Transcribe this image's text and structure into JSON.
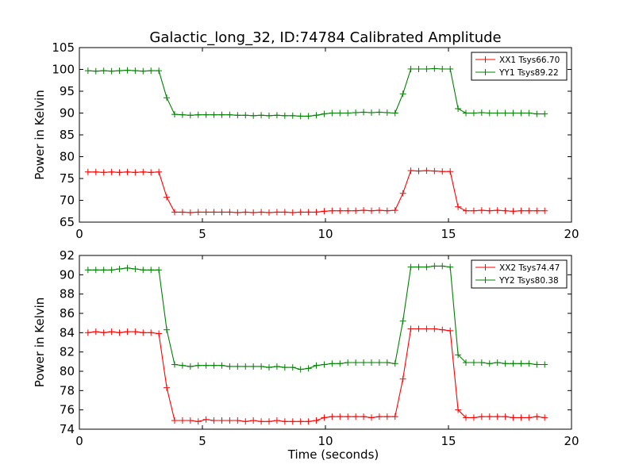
{
  "title": "Galactic_long_32, ID:74784 Calibrated Amplitude",
  "chart_data": [
    {
      "type": "line",
      "xlabel": "",
      "ylabel": "Power in Kelvin",
      "xlim": [
        0,
        20
      ],
      "ylim": [
        65,
        105
      ],
      "xticks": [
        "0",
        "5",
        "10",
        "15",
        "20"
      ],
      "yticks": [
        "65",
        "70",
        "75",
        "80",
        "85",
        "90",
        "95",
        "100",
        "105"
      ],
      "legend_position": "top-right",
      "grid": false,
      "x": [
        0.35,
        0.67,
        0.99,
        1.31,
        1.63,
        1.95,
        2.27,
        2.59,
        2.91,
        3.23,
        3.55,
        3.87,
        4.19,
        4.51,
        4.83,
        5.15,
        5.47,
        5.79,
        6.11,
        6.43,
        6.75,
        7.07,
        7.39,
        7.71,
        8.03,
        8.35,
        8.67,
        8.99,
        9.31,
        9.63,
        9.95,
        10.27,
        10.59,
        10.91,
        11.23,
        11.55,
        11.87,
        12.19,
        12.51,
        12.83,
        13.15,
        13.47,
        13.79,
        14.11,
        14.43,
        14.75,
        15.07,
        15.39,
        15.71,
        16.03,
        16.35,
        16.67,
        16.99,
        17.31,
        17.63,
        17.95,
        18.27,
        18.59,
        18.91
      ],
      "series": [
        {
          "name": "XX1 Tsys66.70",
          "color": "#ff0000",
          "values": [
            76.5,
            76.5,
            76.4,
            76.5,
            76.4,
            76.5,
            76.4,
            76.5,
            76.4,
            76.5,
            70.7,
            67.3,
            67.3,
            67.2,
            67.3,
            67.3,
            67.3,
            67.3,
            67.3,
            67.2,
            67.3,
            67.2,
            67.3,
            67.2,
            67.3,
            67.3,
            67.2,
            67.3,
            67.3,
            67.3,
            67.5,
            67.6,
            67.6,
            67.6,
            67.6,
            67.7,
            67.6,
            67.7,
            67.6,
            67.7,
            71.6,
            76.8,
            76.7,
            76.8,
            76.7,
            76.6,
            76.6,
            68.5,
            67.6,
            67.6,
            67.7,
            67.6,
            67.7,
            67.6,
            67.5,
            67.6,
            67.6,
            67.6,
            67.6
          ]
        },
        {
          "name": "YY1 Tsys89.22",
          "color": "#008000",
          "values": [
            99.7,
            99.6,
            99.7,
            99.6,
            99.7,
            99.8,
            99.7,
            99.6,
            99.7,
            99.7,
            93.5,
            89.7,
            89.6,
            89.5,
            89.6,
            89.6,
            89.6,
            89.6,
            89.6,
            89.5,
            89.5,
            89.4,
            89.5,
            89.4,
            89.5,
            89.4,
            89.4,
            89.3,
            89.3,
            89.5,
            89.8,
            90.0,
            90.0,
            90.0,
            90.1,
            90.2,
            90.1,
            90.2,
            90.1,
            90.0,
            94.4,
            100.1,
            100.1,
            100.1,
            100.2,
            100.1,
            100.1,
            91.0,
            90.0,
            90.0,
            90.1,
            90.0,
            90.0,
            90.0,
            90.0,
            90.0,
            90.0,
            89.8,
            89.8
          ]
        }
      ]
    },
    {
      "type": "line",
      "xlabel": "Time (seconds)",
      "ylabel": "Power in Kelvin",
      "xlim": [
        0,
        20
      ],
      "ylim": [
        74,
        92
      ],
      "xticks": [
        "0",
        "5",
        "10",
        "15",
        "20"
      ],
      "yticks": [
        "74",
        "76",
        "78",
        "80",
        "82",
        "84",
        "86",
        "88",
        "90",
        "92"
      ],
      "legend_position": "top-right",
      "grid": false,
      "x": [
        0.35,
        0.67,
        0.99,
        1.31,
        1.63,
        1.95,
        2.27,
        2.59,
        2.91,
        3.23,
        3.55,
        3.87,
        4.19,
        4.51,
        4.83,
        5.15,
        5.47,
        5.79,
        6.11,
        6.43,
        6.75,
        7.07,
        7.39,
        7.71,
        8.03,
        8.35,
        8.67,
        8.99,
        9.31,
        9.63,
        9.95,
        10.27,
        10.59,
        10.91,
        11.23,
        11.55,
        11.87,
        12.19,
        12.51,
        12.83,
        13.15,
        13.47,
        13.79,
        14.11,
        14.43,
        14.75,
        15.07,
        15.39,
        15.71,
        16.03,
        16.35,
        16.67,
        16.99,
        17.31,
        17.63,
        17.95,
        18.27,
        18.59,
        18.91
      ],
      "series": [
        {
          "name": "XX2 Tsys74.47",
          "color": "#ff0000",
          "values": [
            84.0,
            84.1,
            84.0,
            84.1,
            84.0,
            84.1,
            84.1,
            84.0,
            84.0,
            83.9,
            78.3,
            74.9,
            74.9,
            74.9,
            74.8,
            75.0,
            74.9,
            74.9,
            74.9,
            74.9,
            74.8,
            74.9,
            74.8,
            74.8,
            74.9,
            74.8,
            74.8,
            74.8,
            74.8,
            74.9,
            75.2,
            75.3,
            75.3,
            75.3,
            75.3,
            75.3,
            75.2,
            75.3,
            75.3,
            75.3,
            79.2,
            84.4,
            84.4,
            84.4,
            84.4,
            84.3,
            84.2,
            76.0,
            75.2,
            75.2,
            75.3,
            75.3,
            75.3,
            75.3,
            75.2,
            75.2,
            75.2,
            75.3,
            75.2
          ]
        },
        {
          "name": "YY2 Tsys80.38",
          "color": "#008000",
          "values": [
            90.5,
            90.5,
            90.5,
            90.5,
            90.6,
            90.7,
            90.6,
            90.5,
            90.5,
            90.5,
            84.3,
            80.7,
            80.6,
            80.5,
            80.6,
            80.6,
            80.6,
            80.6,
            80.5,
            80.5,
            80.5,
            80.5,
            80.5,
            80.4,
            80.5,
            80.4,
            80.4,
            80.2,
            80.3,
            80.6,
            80.7,
            80.8,
            80.8,
            80.9,
            80.9,
            80.9,
            80.9,
            80.9,
            80.9,
            80.8,
            85.2,
            90.8,
            90.8,
            90.8,
            90.9,
            90.9,
            90.8,
            81.7,
            80.9,
            80.9,
            80.9,
            80.8,
            80.9,
            80.8,
            80.8,
            80.8,
            80.8,
            80.7,
            80.7
          ]
        }
      ]
    }
  ]
}
